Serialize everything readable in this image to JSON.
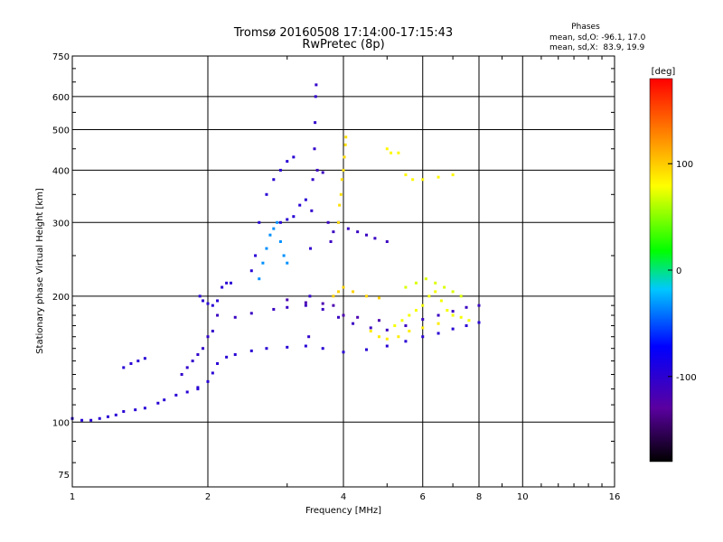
{
  "chart_data": {
    "type": "scatter",
    "title": "Tromsø 20160508 17:14:00-17:15:43",
    "subtitle": "RwPretec (8p)",
    "xlabel": "Frequency [MHz]",
    "ylabel": "Stationary phase Virtual Height [km]",
    "x_scale": "log",
    "y_scale": "log",
    "xlim": [
      1,
      16
    ],
    "ylim": [
      70,
      750
    ],
    "x_ticks": [
      1,
      2,
      4,
      6,
      8,
      10,
      16
    ],
    "x_tick_labels": [
      "1",
      "2",
      "4",
      "6",
      "8",
      "10",
      "16"
    ],
    "y_ticks": [
      75,
      100,
      200,
      300,
      400,
      500,
      600,
      750
    ],
    "y_tick_labels": [
      "75",
      "100",
      "200",
      "300",
      "400",
      "500",
      "600",
      "750"
    ],
    "grid": true,
    "phase_info": {
      "heading": "Phases",
      "line_o": "mean, sd,O: -96.1, 17.0",
      "line_x": "mean, sd,X:  83.9, 19.9"
    },
    "colorbar": {
      "label": "[deg]",
      "range": [
        -180,
        180
      ],
      "ticks": [
        100,
        0,
        -100
      ],
      "tick_labels": [
        "100",
        "0",
        "-100"
      ],
      "colors": [
        "#000000",
        "#5a00a0",
        "#0000ff",
        "#00c8ff",
        "#00ff00",
        "#ffff00",
        "#ff8000",
        "#ff0000"
      ]
    },
    "traces": [
      {
        "name": "",
        "phase": -100,
        "points": [
          [
            1.0,
            102
          ],
          [
            1.05,
            101
          ],
          [
            1.1,
            101
          ],
          [
            1.15,
            102
          ],
          [
            1.2,
            103
          ],
          [
            1.25,
            104
          ],
          [
            1.3,
            106
          ],
          [
            1.38,
            107
          ],
          [
            1.45,
            108
          ],
          [
            1.55,
            111
          ],
          [
            1.6,
            113
          ],
          [
            1.7,
            116
          ],
          [
            1.8,
            118
          ],
          [
            1.9,
            120
          ]
        ]
      },
      {
        "name": "",
        "phase": -100,
        "points": [
          [
            1.9,
            121
          ],
          [
            2.0,
            125
          ],
          [
            2.05,
            131
          ],
          [
            2.1,
            138
          ],
          [
            2.2,
            143
          ],
          [
            2.3,
            145
          ],
          [
            2.5,
            148
          ],
          [
            2.7,
            150
          ],
          [
            3.0,
            151
          ],
          [
            3.3,
            152
          ],
          [
            3.6,
            150
          ],
          [
            4.0,
            147
          ],
          [
            4.5,
            149
          ],
          [
            5.0,
            152
          ],
          [
            5.5,
            156
          ],
          [
            6.0,
            160
          ],
          [
            6.5,
            163
          ],
          [
            7.0,
            167
          ],
          [
            7.5,
            170
          ],
          [
            8.0,
            173
          ]
        ]
      },
      {
        "name": "",
        "phase": -110,
        "points": [
          [
            2.1,
            180
          ],
          [
            2.3,
            178
          ],
          [
            2.5,
            182
          ],
          [
            2.8,
            186
          ],
          [
            3.0,
            188
          ],
          [
            3.3,
            190
          ],
          [
            3.6,
            186
          ],
          [
            3.9,
            178
          ],
          [
            4.2,
            172
          ],
          [
            4.6,
            168
          ],
          [
            5.0,
            166
          ],
          [
            5.5,
            170
          ],
          [
            6.0,
            176
          ],
          [
            6.5,
            180
          ],
          [
            7.0,
            184
          ],
          [
            7.5,
            188
          ],
          [
            8.0,
            190
          ]
        ]
      },
      {
        "name": "",
        "phase": -120,
        "points": [
          [
            3.0,
            196
          ],
          [
            3.3,
            193
          ],
          [
            3.6,
            192
          ],
          [
            3.8,
            190
          ],
          [
            4.0,
            180
          ],
          [
            4.3,
            178
          ],
          [
            4.8,
            175
          ]
        ]
      },
      {
        "name": "",
        "phase": -105,
        "points": [
          [
            3.35,
            160
          ],
          [
            3.37,
            200
          ],
          [
            3.38,
            260
          ],
          [
            3.4,
            320
          ],
          [
            3.42,
            380
          ],
          [
            3.45,
            450
          ],
          [
            3.46,
            520
          ],
          [
            3.47,
            600
          ],
          [
            3.48,
            640
          ]
        ]
      },
      {
        "name": "",
        "phase": -100,
        "points": [
          [
            2.9,
            300
          ],
          [
            3.0,
            305
          ],
          [
            3.1,
            310
          ],
          [
            3.2,
            330
          ],
          [
            3.3,
            340
          ]
        ]
      },
      {
        "name": "",
        "phase": -110,
        "points": [
          [
            3.5,
            400
          ],
          [
            3.6,
            395
          ],
          [
            3.7,
            300
          ],
          [
            3.75,
            270
          ],
          [
            3.8,
            285
          ],
          [
            3.9,
            300
          ],
          [
            4.1,
            290
          ],
          [
            4.3,
            285
          ],
          [
            4.5,
            280
          ],
          [
            4.7,
            275
          ],
          [
            5.0,
            270
          ]
        ]
      },
      {
        "name": "",
        "phase": -40,
        "points": [
          [
            2.6,
            220
          ],
          [
            2.65,
            240
          ],
          [
            2.7,
            260
          ],
          [
            2.75,
            280
          ],
          [
            2.8,
            290
          ],
          [
            2.85,
            300
          ],
          [
            2.9,
            270
          ],
          [
            2.95,
            250
          ],
          [
            3.0,
            240
          ]
        ]
      },
      {
        "name": "",
        "phase": -100,
        "points": [
          [
            2.5,
            230
          ],
          [
            2.55,
            250
          ],
          [
            2.6,
            300
          ],
          [
            2.7,
            350
          ],
          [
            2.8,
            380
          ],
          [
            2.9,
            400
          ],
          [
            3.0,
            420
          ],
          [
            3.1,
            430
          ]
        ]
      },
      {
        "name": "",
        "phase": -105,
        "points": [
          [
            1.75,
            130
          ],
          [
            1.8,
            135
          ],
          [
            1.85,
            140
          ],
          [
            1.9,
            145
          ],
          [
            1.95,
            150
          ],
          [
            2.0,
            160
          ],
          [
            2.05,
            165
          ]
        ]
      },
      {
        "name": "",
        "phase": -100,
        "points": [
          [
            1.3,
            135
          ],
          [
            1.35,
            138
          ],
          [
            1.4,
            140
          ],
          [
            1.45,
            142
          ]
        ]
      },
      {
        "name": "",
        "phase": -100,
        "points": [
          [
            1.92,
            200
          ],
          [
            1.95,
            195
          ],
          [
            2.0,
            192
          ],
          [
            2.05,
            190
          ],
          [
            2.1,
            195
          ],
          [
            2.15,
            210
          ],
          [
            2.2,
            215
          ],
          [
            2.25,
            215
          ]
        ]
      },
      {
        "name": "",
        "phase": 90,
        "points": [
          [
            3.9,
            300
          ],
          [
            3.92,
            330
          ],
          [
            3.95,
            350
          ],
          [
            3.97,
            380
          ],
          [
            4.0,
            400
          ],
          [
            4.02,
            430
          ],
          [
            4.04,
            460
          ],
          [
            4.05,
            480
          ]
        ]
      },
      {
        "name": "",
        "phase": 95,
        "points": [
          [
            3.8,
            200
          ],
          [
            3.9,
            205
          ],
          [
            4.0,
            210
          ],
          [
            4.2,
            205
          ],
          [
            4.5,
            200
          ],
          [
            4.8,
            198
          ]
        ]
      },
      {
        "name": "",
        "phase": 80,
        "points": [
          [
            5.0,
            450
          ],
          [
            5.1,
            440
          ],
          [
            5.3,
            440
          ],
          [
            5.5,
            390
          ],
          [
            5.7,
            380
          ],
          [
            6.0,
            380
          ],
          [
            6.5,
            385
          ],
          [
            7.0,
            390
          ]
        ]
      },
      {
        "name": "",
        "phase": 75,
        "points": [
          [
            5.2,
            170
          ],
          [
            5.4,
            175
          ],
          [
            5.6,
            180
          ],
          [
            5.8,
            185
          ],
          [
            6.0,
            190
          ],
          [
            6.2,
            200
          ],
          [
            6.4,
            205
          ],
          [
            6.6,
            195
          ],
          [
            6.8,
            185
          ],
          [
            7.0,
            180
          ],
          [
            7.3,
            178
          ],
          [
            7.6,
            175
          ]
        ]
      },
      {
        "name": "",
        "phase": 85,
        "points": [
          [
            4.6,
            165
          ],
          [
            4.8,
            160
          ],
          [
            5.0,
            158
          ],
          [
            5.3,
            160
          ],
          [
            5.6,
            165
          ],
          [
            6.0,
            168
          ],
          [
            6.5,
            172
          ]
        ]
      },
      {
        "name": "",
        "phase": 70,
        "points": [
          [
            5.5,
            210
          ],
          [
            5.8,
            215
          ],
          [
            6.1,
            220
          ],
          [
            6.4,
            215
          ],
          [
            6.7,
            210
          ],
          [
            7.0,
            205
          ],
          [
            7.3,
            200
          ]
        ]
      }
    ]
  }
}
